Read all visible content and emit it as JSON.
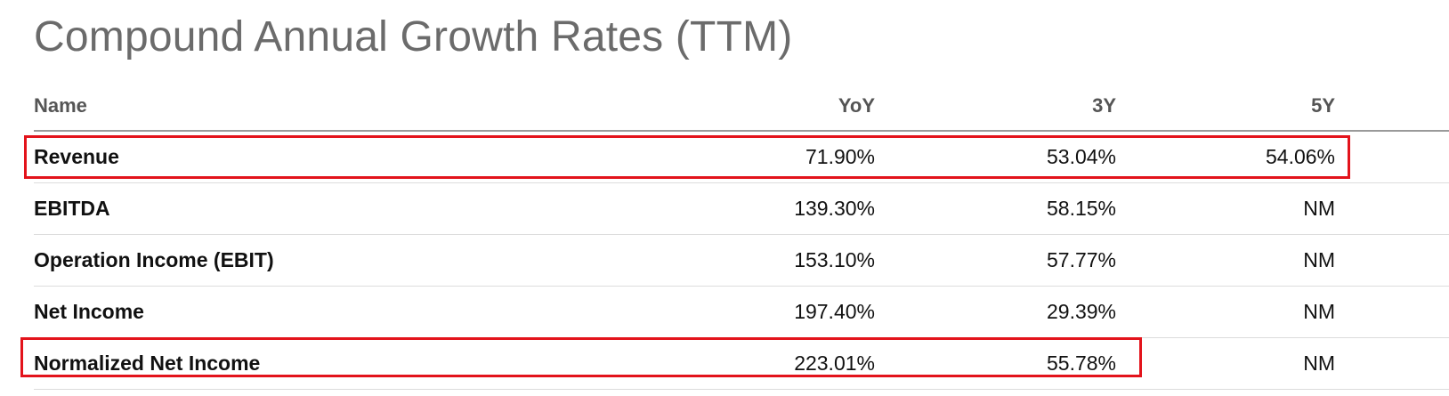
{
  "title": "Compound Annual Growth Rates (TTM)",
  "columns": {
    "name": "Name",
    "yoy": "YoY",
    "y3": "3Y",
    "y5": "5Y"
  },
  "rows": [
    {
      "name": "Revenue",
      "yoy": "71.90%",
      "y3": "53.04%",
      "y5": "54.06%",
      "highlighted": true
    },
    {
      "name": "EBITDA",
      "yoy": "139.30%",
      "y3": "58.15%",
      "y5": "NM",
      "highlighted": false
    },
    {
      "name": "Operation Income (EBIT)",
      "yoy": "153.10%",
      "y3": "57.77%",
      "y5": "NM",
      "highlighted": false
    },
    {
      "name": "Net Income",
      "yoy": "197.40%",
      "y3": "29.39%",
      "y5": "NM",
      "highlighted": false
    },
    {
      "name": "Normalized Net Income",
      "yoy": "223.01%",
      "y3": "55.78%",
      "y5": "NM",
      "highlighted": true
    }
  ],
  "colors": {
    "title": "#6b6b6b",
    "highlight_border": "#e3131b",
    "row_divider": "#dcdcdc",
    "header_divider": "#9a9a9a"
  }
}
